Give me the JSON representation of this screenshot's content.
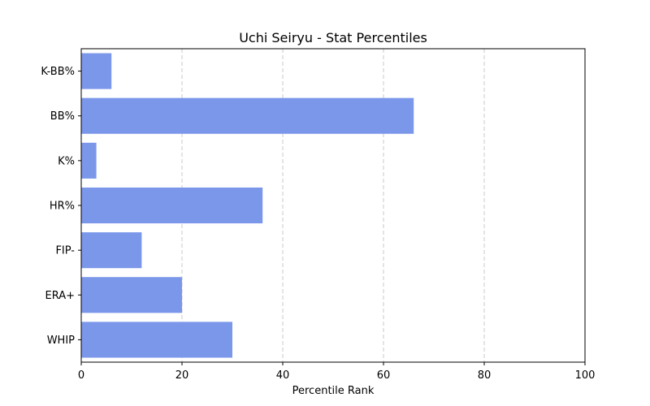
{
  "chart_data": {
    "type": "bar",
    "orientation": "horizontal",
    "title": "Uchi Seiryu - Stat Percentiles",
    "xlabel": "Percentile Rank",
    "ylabel": "",
    "xlim": [
      0,
      100
    ],
    "xticks": [
      0,
      20,
      40,
      60,
      80,
      100
    ],
    "grid": "x-dashed",
    "bar_color": "#7b97ea",
    "categories": [
      "K-BB%",
      "BB%",
      "K%",
      "HR%",
      "FIP-",
      "ERA+",
      "WHIP"
    ],
    "values": [
      6,
      66,
      3,
      36,
      12,
      20,
      30
    ]
  }
}
